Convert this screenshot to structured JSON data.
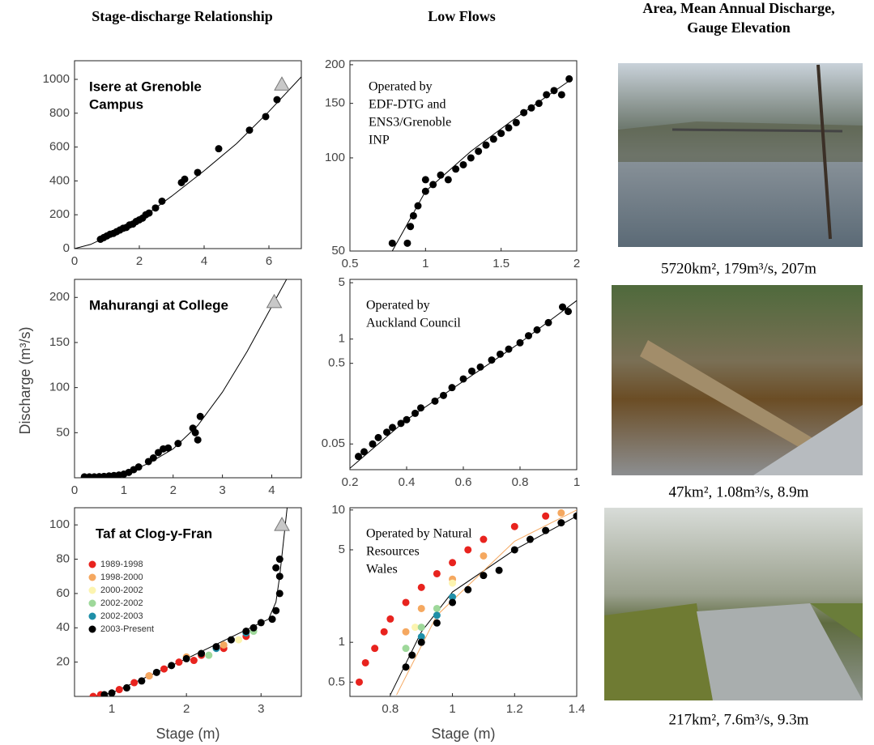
{
  "headers": [
    "Stage-discharge Relationship",
    "Low Flows",
    "Area, Mean Annual Discharge,",
    "Gauge Elevation"
  ],
  "y_label": "Discharge (m³/s)",
  "x_labels": [
    "Stage (m)",
    "Stage (m)"
  ],
  "photos": [
    {
      "caption": "5720km², 179m³/s, 207m"
    },
    {
      "caption": "47km², 1.08m³/s, 8.9m"
    },
    {
      "caption": "217km², 7.6m³/s, 9.3m"
    }
  ],
  "chart_data": [
    {
      "type": "scatter",
      "label_lines": [
        "Isere at Grenoble",
        "Campus"
      ],
      "log_y": false,
      "xlim": [
        0,
        7
      ],
      "ylim": [
        0,
        1110
      ],
      "xticks": [
        0,
        2,
        4,
        6
      ],
      "yticks": [
        0,
        200,
        400,
        600,
        800,
        1000
      ],
      "series": [
        {
          "color": "#000000",
          "x": [
            0.8,
            0.9,
            1.0,
            1.1,
            1.2,
            1.3,
            1.4,
            1.5,
            1.6,
            1.7,
            1.8,
            1.9,
            2.0,
            2.1,
            2.2,
            2.3,
            2.5,
            2.7,
            3.3,
            3.4,
            3.8,
            4.45,
            5.4,
            5.9,
            6.25
          ],
          "values": [
            55,
            65,
            75,
            85,
            90,
            100,
            110,
            120,
            125,
            140,
            145,
            160,
            170,
            180,
            200,
            210,
            240,
            280,
            390,
            410,
            450,
            590,
            700,
            780,
            880
          ]
        }
      ],
      "curves": [
        {
          "color": "#000000",
          "x": [
            0,
            0.5,
            1,
            2,
            3,
            4,
            5,
            6,
            7
          ],
          "values": [
            0,
            25,
            70,
            170,
            310,
            460,
            620,
            810,
            1015
          ]
        }
      ],
      "highlight": {
        "x": 6.4,
        "value": 970,
        "color": "#c8c8c8"
      }
    },
    {
      "type": "scatter",
      "label_lines": [
        "Mahurangi at College"
      ],
      "log_y": false,
      "xlim": [
        0,
        4.6
      ],
      "ylim": [
        0,
        220
      ],
      "xticks": [
        0,
        1,
        2,
        3,
        4
      ],
      "yticks": [
        50,
        100,
        150,
        200
      ],
      "series": [
        {
          "color": "#000000",
          "x": [
            0.2,
            0.3,
            0.4,
            0.5,
            0.6,
            0.7,
            0.8,
            0.9,
            1.0,
            1.1,
            1.2,
            1.3,
            1.5,
            1.6,
            1.7,
            1.8,
            1.9,
            2.1,
            2.4,
            2.45,
            2.5,
            2.55
          ],
          "values": [
            1,
            1,
            1,
            1.2,
            1.5,
            2,
            2.5,
            3,
            4,
            6,
            9,
            12,
            18,
            22,
            28,
            32,
            33,
            38,
            55,
            50,
            42,
            68
          ]
        }
      ],
      "curves": [
        {
          "color": "#000000",
          "x": [
            0.2,
            0.5,
            1,
            1.5,
            2,
            2.5,
            3,
            3.5,
            4,
            4.3
          ],
          "values": [
            0.5,
            1,
            4,
            16,
            32,
            58,
            95,
            140,
            190,
            220
          ]
        }
      ],
      "highlight": {
        "x": 4.05,
        "value": 195,
        "color": "#c8c8c8"
      }
    },
    {
      "type": "scatter",
      "label_lines": [
        "Taf at Clog-y-Fran"
      ],
      "log_y": false,
      "legend": "left",
      "xlim": [
        0.5,
        3.54
      ],
      "ylim": [
        0,
        110
      ],
      "xticks": [
        1,
        2,
        3
      ],
      "yticks": [
        20,
        40,
        60,
        80,
        100
      ],
      "series": [
        {
          "name": "1989-1998",
          "color": "#e8231e",
          "x": [
            0.75,
            0.85,
            1.1,
            1.3,
            1.5,
            1.7,
            1.9,
            2.1,
            2.2,
            2.5,
            2.8
          ],
          "values": [
            0,
            1,
            4,
            8,
            12,
            16,
            20,
            21,
            24,
            28,
            35
          ]
        },
        {
          "name": "1998-2000",
          "color": "#f5a860",
          "x": [
            1.5,
            2.0,
            2.5
          ],
          "values": [
            12,
            23,
            30
          ]
        },
        {
          "name": "2000-2002",
          "color": "#fcf4b0",
          "x": [
            2.2,
            2.7
          ],
          "values": [
            25,
            33
          ]
        },
        {
          "name": "2002-2002",
          "color": "#9ed89a",
          "x": [
            2.3,
            2.9
          ],
          "values": [
            24,
            38
          ]
        },
        {
          "name": "2002-2003",
          "color": "#1f8fa8",
          "x": [
            2.4,
            2.8
          ],
          "values": [
            28,
            37
          ]
        },
        {
          "name": "2003-Present",
          "color": "#000000",
          "x": [
            0.9,
            1.0,
            1.2,
            1.4,
            1.6,
            1.8,
            2.0,
            2.2,
            2.4,
            2.6,
            2.8,
            2.9,
            3.0,
            3.15,
            3.2,
            3.25,
            3.25,
            3.2,
            3.25
          ],
          "values": [
            1,
            2,
            5,
            9,
            14,
            18,
            22,
            25,
            29,
            33,
            38,
            40,
            43,
            45,
            50,
            60,
            70,
            75,
            80
          ]
        }
      ],
      "curves": [
        {
          "color": "#000000",
          "x": [
            0.75,
            1,
            2,
            3,
            3.1,
            3.2,
            3.25,
            3.3,
            3.35
          ],
          "values": [
            0,
            2,
            22,
            43,
            45,
            55,
            70,
            90,
            110
          ]
        }
      ],
      "highlight": {
        "x": 3.28,
        "value": 100,
        "color": "#c8c8c8"
      }
    },
    {
      "type": "scatter",
      "label_lines": [
        "Operated by",
        "EDF-DTG and",
        "ENS3/Grenoble",
        "INP"
      ],
      "log_y": true,
      "xlim": [
        0.5,
        2.0
      ],
      "ylim": [
        50,
        206
      ],
      "xticks": [
        0.5,
        1,
        1.5,
        2
      ],
      "yticks": [
        50,
        100,
        150,
        200
      ],
      "series": [
        {
          "color": "#000000",
          "x": [
            0.78,
            0.88,
            0.9,
            0.92,
            0.95,
            1.0,
            1.0,
            1.05,
            1.1,
            1.15,
            1.2,
            1.25,
            1.3,
            1.35,
            1.4,
            1.45,
            1.5,
            1.55,
            1.6,
            1.65,
            1.7,
            1.75,
            1.8,
            1.85,
            1.9,
            1.95
          ],
          "values": [
            53,
            53,
            60,
            65,
            70,
            78,
            85,
            82,
            88,
            85,
            92,
            95,
            100,
            105,
            110,
            115,
            120,
            125,
            130,
            140,
            145,
            150,
            160,
            165,
            160,
            180
          ]
        }
      ],
      "curves": [
        {
          "color": "#000000",
          "x": [
            0.78,
            1,
            1.3,
            1.6,
            1.97
          ],
          "values": [
            50,
            78,
            105,
            135,
            180
          ]
        }
      ]
    },
    {
      "type": "scatter",
      "label_lines": [
        "Operated by",
        "Auckland Council"
      ],
      "log_y": true,
      "xlim": [
        0.2,
        1
      ],
      "ylim": [
        0.024,
        5.5
      ],
      "xticks": [
        0.2,
        0.4,
        0.6,
        0.8,
        1
      ],
      "yticks": [
        0.05,
        0.5,
        1,
        5
      ],
      "series": [
        {
          "color": "#000000",
          "x": [
            0.23,
            0.25,
            0.28,
            0.3,
            0.33,
            0.35,
            0.38,
            0.4,
            0.43,
            0.45,
            0.5,
            0.53,
            0.56,
            0.6,
            0.63,
            0.66,
            0.7,
            0.73,
            0.76,
            0.8,
            0.83,
            0.86,
            0.9,
            0.95,
            0.97
          ],
          "values": [
            0.035,
            0.04,
            0.05,
            0.06,
            0.07,
            0.08,
            0.09,
            0.1,
            0.12,
            0.14,
            0.17,
            0.2,
            0.25,
            0.32,
            0.4,
            0.45,
            0.55,
            0.65,
            0.75,
            0.9,
            1.1,
            1.3,
            1.6,
            2.5,
            2.2
          ]
        }
      ],
      "curves": [
        {
          "color": "#000000",
          "x": [
            0.2,
            0.4,
            0.6,
            0.8,
            1
          ],
          "values": [
            0.025,
            0.1,
            0.3,
            0.9,
            3
          ]
        }
      ]
    },
    {
      "type": "scatter",
      "label_lines": [
        "Operated by Natural",
        "Resources",
        "Wales"
      ],
      "log_y": true,
      "xlim": [
        0.67,
        1.4
      ],
      "ylim": [
        0.39,
        10.4
      ],
      "xticks": [
        0.8,
        1,
        1.2,
        1.4
      ],
      "yticks": [
        0.5,
        1,
        5,
        10
      ],
      "series": [
        {
          "color": "#e8231e",
          "x": [
            0.7,
            0.72,
            0.75,
            0.78,
            0.8,
            0.85,
            0.9,
            0.95,
            1.0,
            1.05,
            1.1,
            1.2,
            1.3
          ],
          "values": [
            0.5,
            0.7,
            0.9,
            1.2,
            1.5,
            2,
            2.6,
            3.3,
            4,
            5,
            6,
            7.5,
            9
          ]
        },
        {
          "color": "#f5a860",
          "x": [
            0.85,
            0.9,
            1.0,
            1.1,
            1.35
          ],
          "values": [
            1.2,
            1.8,
            3,
            4.5,
            9.5
          ]
        },
        {
          "color": "#fcf4b0",
          "x": [
            0.88,
            1.0
          ],
          "values": [
            1.3,
            2.8
          ]
        },
        {
          "color": "#9ed89a",
          "x": [
            0.85,
            0.9,
            0.95
          ],
          "values": [
            0.9,
            1.3,
            1.8
          ]
        },
        {
          "color": "#1f8fa8",
          "x": [
            0.9,
            0.95,
            1.0
          ],
          "values": [
            1.1,
            1.6,
            2.2
          ]
        },
        {
          "color": "#000000",
          "x": [
            0.85,
            0.87,
            0.9,
            0.95,
            1.0,
            1.05,
            1.1,
            1.15,
            1.2,
            1.25,
            1.3,
            1.35,
            1.4
          ],
          "values": [
            0.65,
            0.8,
            1.0,
            1.4,
            2,
            2.5,
            3.2,
            3.5,
            5,
            6,
            7,
            8,
            9
          ]
        }
      ],
      "curves": [
        {
          "color": "#000000",
          "x": [
            0.8,
            0.9,
            1.0,
            1.2,
            1.4
          ],
          "values": [
            0.4,
            1.2,
            2.4,
            5,
            9
          ]
        },
        {
          "color": "#f5a860",
          "x": [
            0.82,
            0.95,
            1.2,
            1.4
          ],
          "values": [
            0.4,
            1.6,
            5.8,
            10
          ]
        }
      ]
    }
  ]
}
